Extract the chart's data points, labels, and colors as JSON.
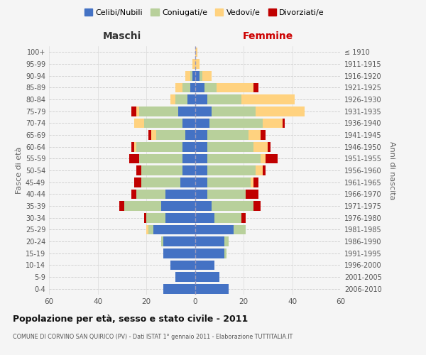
{
  "age_groups": [
    "0-4",
    "5-9",
    "10-14",
    "15-19",
    "20-24",
    "25-29",
    "30-34",
    "35-39",
    "40-44",
    "45-49",
    "50-54",
    "55-59",
    "60-64",
    "65-69",
    "70-74",
    "75-79",
    "80-84",
    "85-89",
    "90-94",
    "95-99",
    "100+"
  ],
  "birth_years": [
    "2006-2010",
    "2001-2005",
    "1996-2000",
    "1991-1995",
    "1986-1990",
    "1981-1985",
    "1976-1980",
    "1971-1975",
    "1966-1970",
    "1961-1965",
    "1956-1960",
    "1951-1955",
    "1946-1950",
    "1941-1945",
    "1936-1940",
    "1931-1935",
    "1926-1930",
    "1921-1925",
    "1916-1920",
    "1911-1915",
    "≤ 1910"
  ],
  "maschi_celibi": [
    13,
    8,
    10,
    13,
    13,
    17,
    12,
    14,
    12,
    6,
    5,
    5,
    5,
    4,
    5,
    7,
    3,
    2,
    1,
    0,
    0
  ],
  "maschi_coniugati": [
    0,
    0,
    0,
    0,
    1,
    2,
    8,
    15,
    12,
    16,
    17,
    18,
    19,
    12,
    16,
    16,
    5,
    3,
    1,
    0,
    0
  ],
  "maschi_vedovi": [
    0,
    0,
    0,
    0,
    0,
    1,
    0,
    0,
    0,
    0,
    0,
    0,
    1,
    2,
    4,
    1,
    2,
    3,
    2,
    1,
    0
  ],
  "maschi_divorziati": [
    0,
    0,
    0,
    0,
    0,
    0,
    1,
    2,
    2,
    3,
    2,
    4,
    1,
    1,
    0,
    2,
    0,
    0,
    0,
    0,
    0
  ],
  "femmine_celibi": [
    14,
    10,
    8,
    12,
    12,
    16,
    8,
    7,
    5,
    5,
    5,
    5,
    5,
    5,
    6,
    7,
    5,
    4,
    2,
    0,
    0
  ],
  "femmine_coniugati": [
    0,
    0,
    0,
    1,
    2,
    5,
    11,
    17,
    16,
    18,
    20,
    22,
    19,
    17,
    22,
    18,
    14,
    5,
    1,
    0,
    0
  ],
  "femmine_vedovi": [
    0,
    0,
    0,
    0,
    0,
    0,
    0,
    0,
    0,
    1,
    3,
    2,
    6,
    5,
    8,
    20,
    22,
    15,
    4,
    2,
    1
  ],
  "femmine_divorziati": [
    0,
    0,
    0,
    0,
    0,
    0,
    2,
    3,
    5,
    2,
    1,
    5,
    1,
    2,
    1,
    0,
    0,
    2,
    0,
    0,
    0
  ],
  "colors": {
    "celibi": "#4472C4",
    "coniugati": "#b8d09b",
    "vedovi": "#ffd27f",
    "divorziati": "#C00000"
  },
  "title": "Popolazione per età, sesso e stato civile - 2011",
  "subtitle": "COMUNE DI CORVINO SAN QUIRICO (PV) - Dati ISTAT 1° gennaio 2011 - Elaborazione TUTTITALIA.IT",
  "xlabel_left": "Maschi",
  "xlabel_right": "Femmine",
  "ylabel_left": "Fasce di età",
  "ylabel_right": "Anni di nascita",
  "xlim": 60,
  "bg_color": "#f5f5f5",
  "grid_color": "#cccccc"
}
